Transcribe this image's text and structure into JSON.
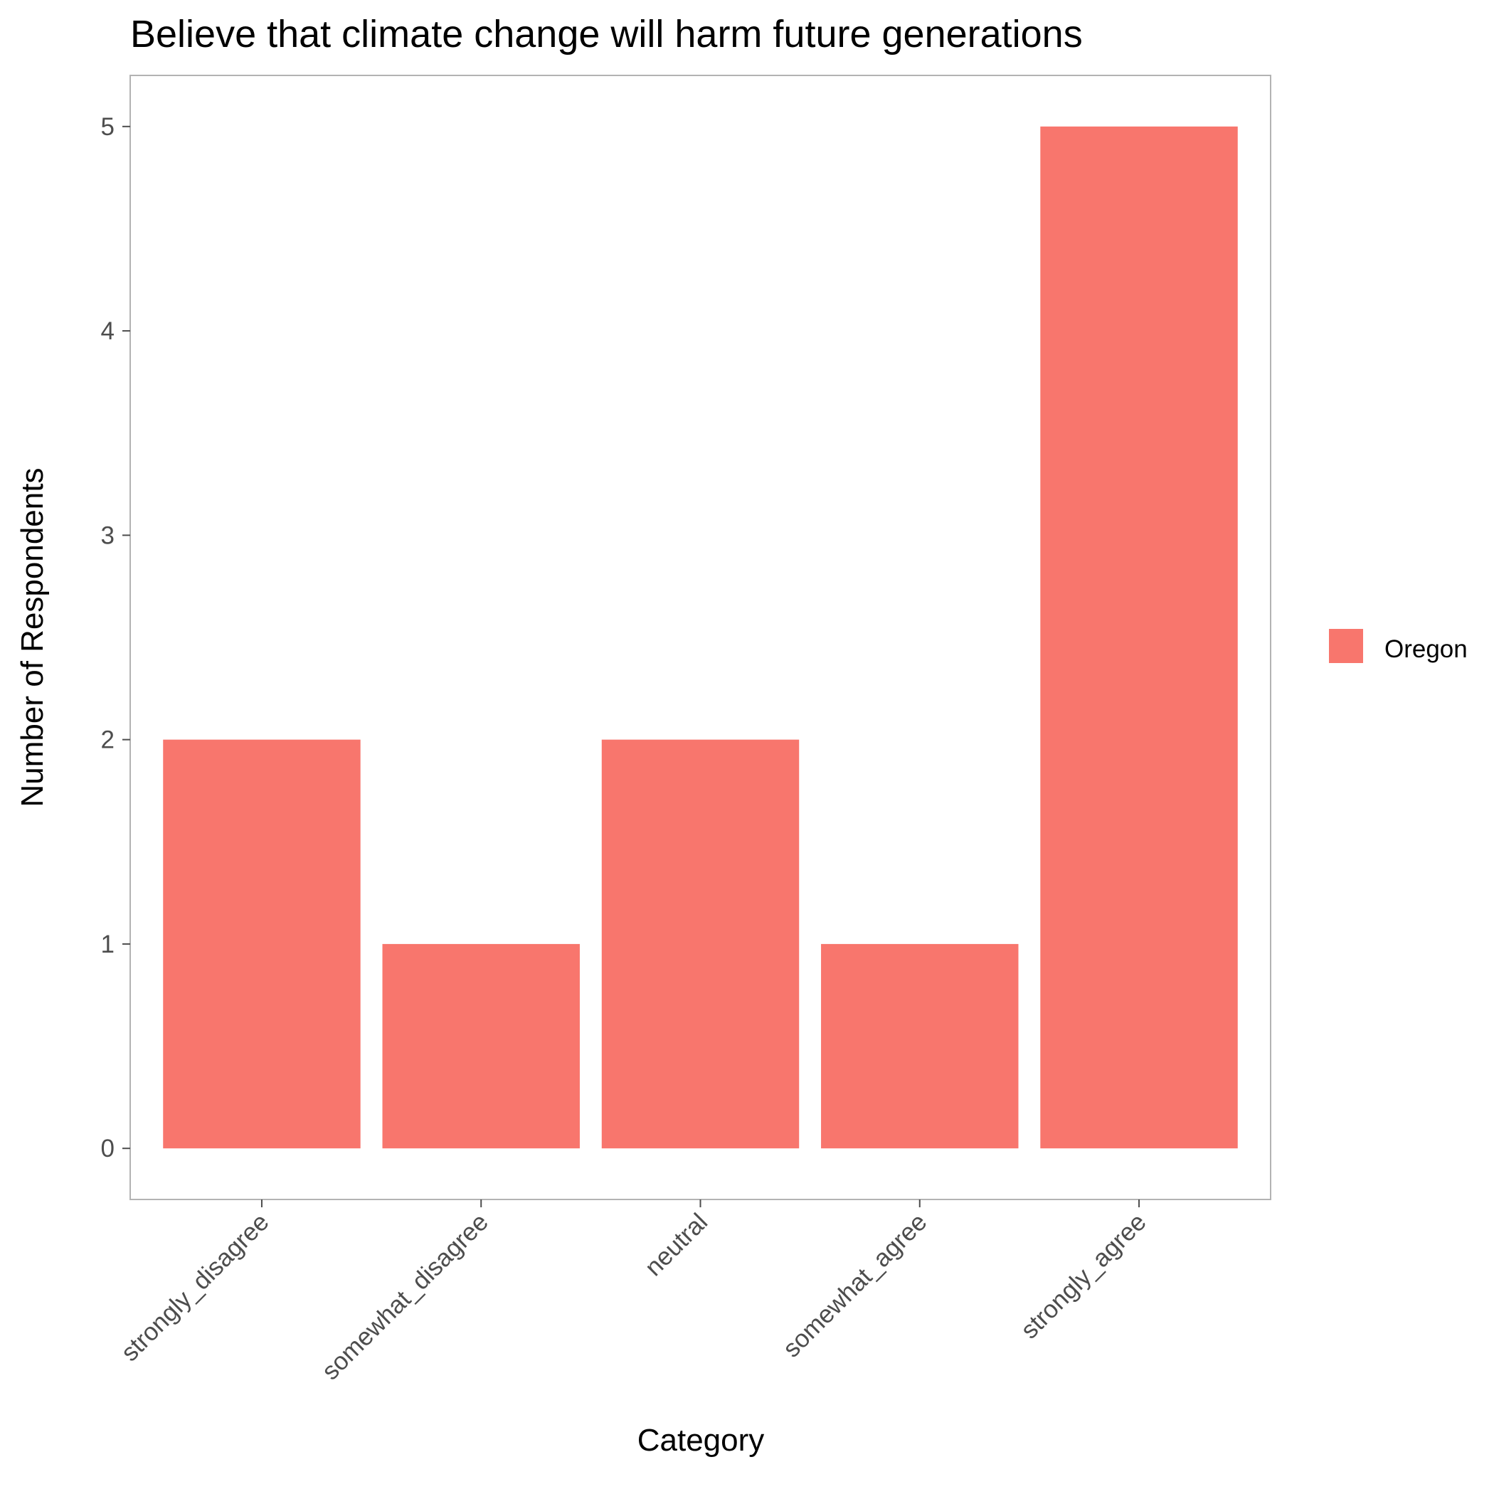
{
  "chart_data": {
    "type": "bar",
    "title": "Believe that climate change will harm future generations",
    "xlabel": "Category",
    "ylabel": "Number of Respondents",
    "categories": [
      "strongly_disagree",
      "somewhat_disagree",
      "neutral",
      "somewhat_agree",
      "strongly_agree"
    ],
    "series": [
      {
        "name": "Oregon",
        "values": [
          2,
          1,
          2,
          1,
          5
        ],
        "color": "#f8766d"
      }
    ],
    "ylim": [
      -0.25,
      5.25
    ],
    "yticks": [
      0,
      1,
      2,
      3,
      4,
      5
    ],
    "grid": false,
    "legend_position": "right",
    "colors": {
      "panel_border": "#b3b3b3",
      "tick": "#4d4d4d"
    }
  }
}
